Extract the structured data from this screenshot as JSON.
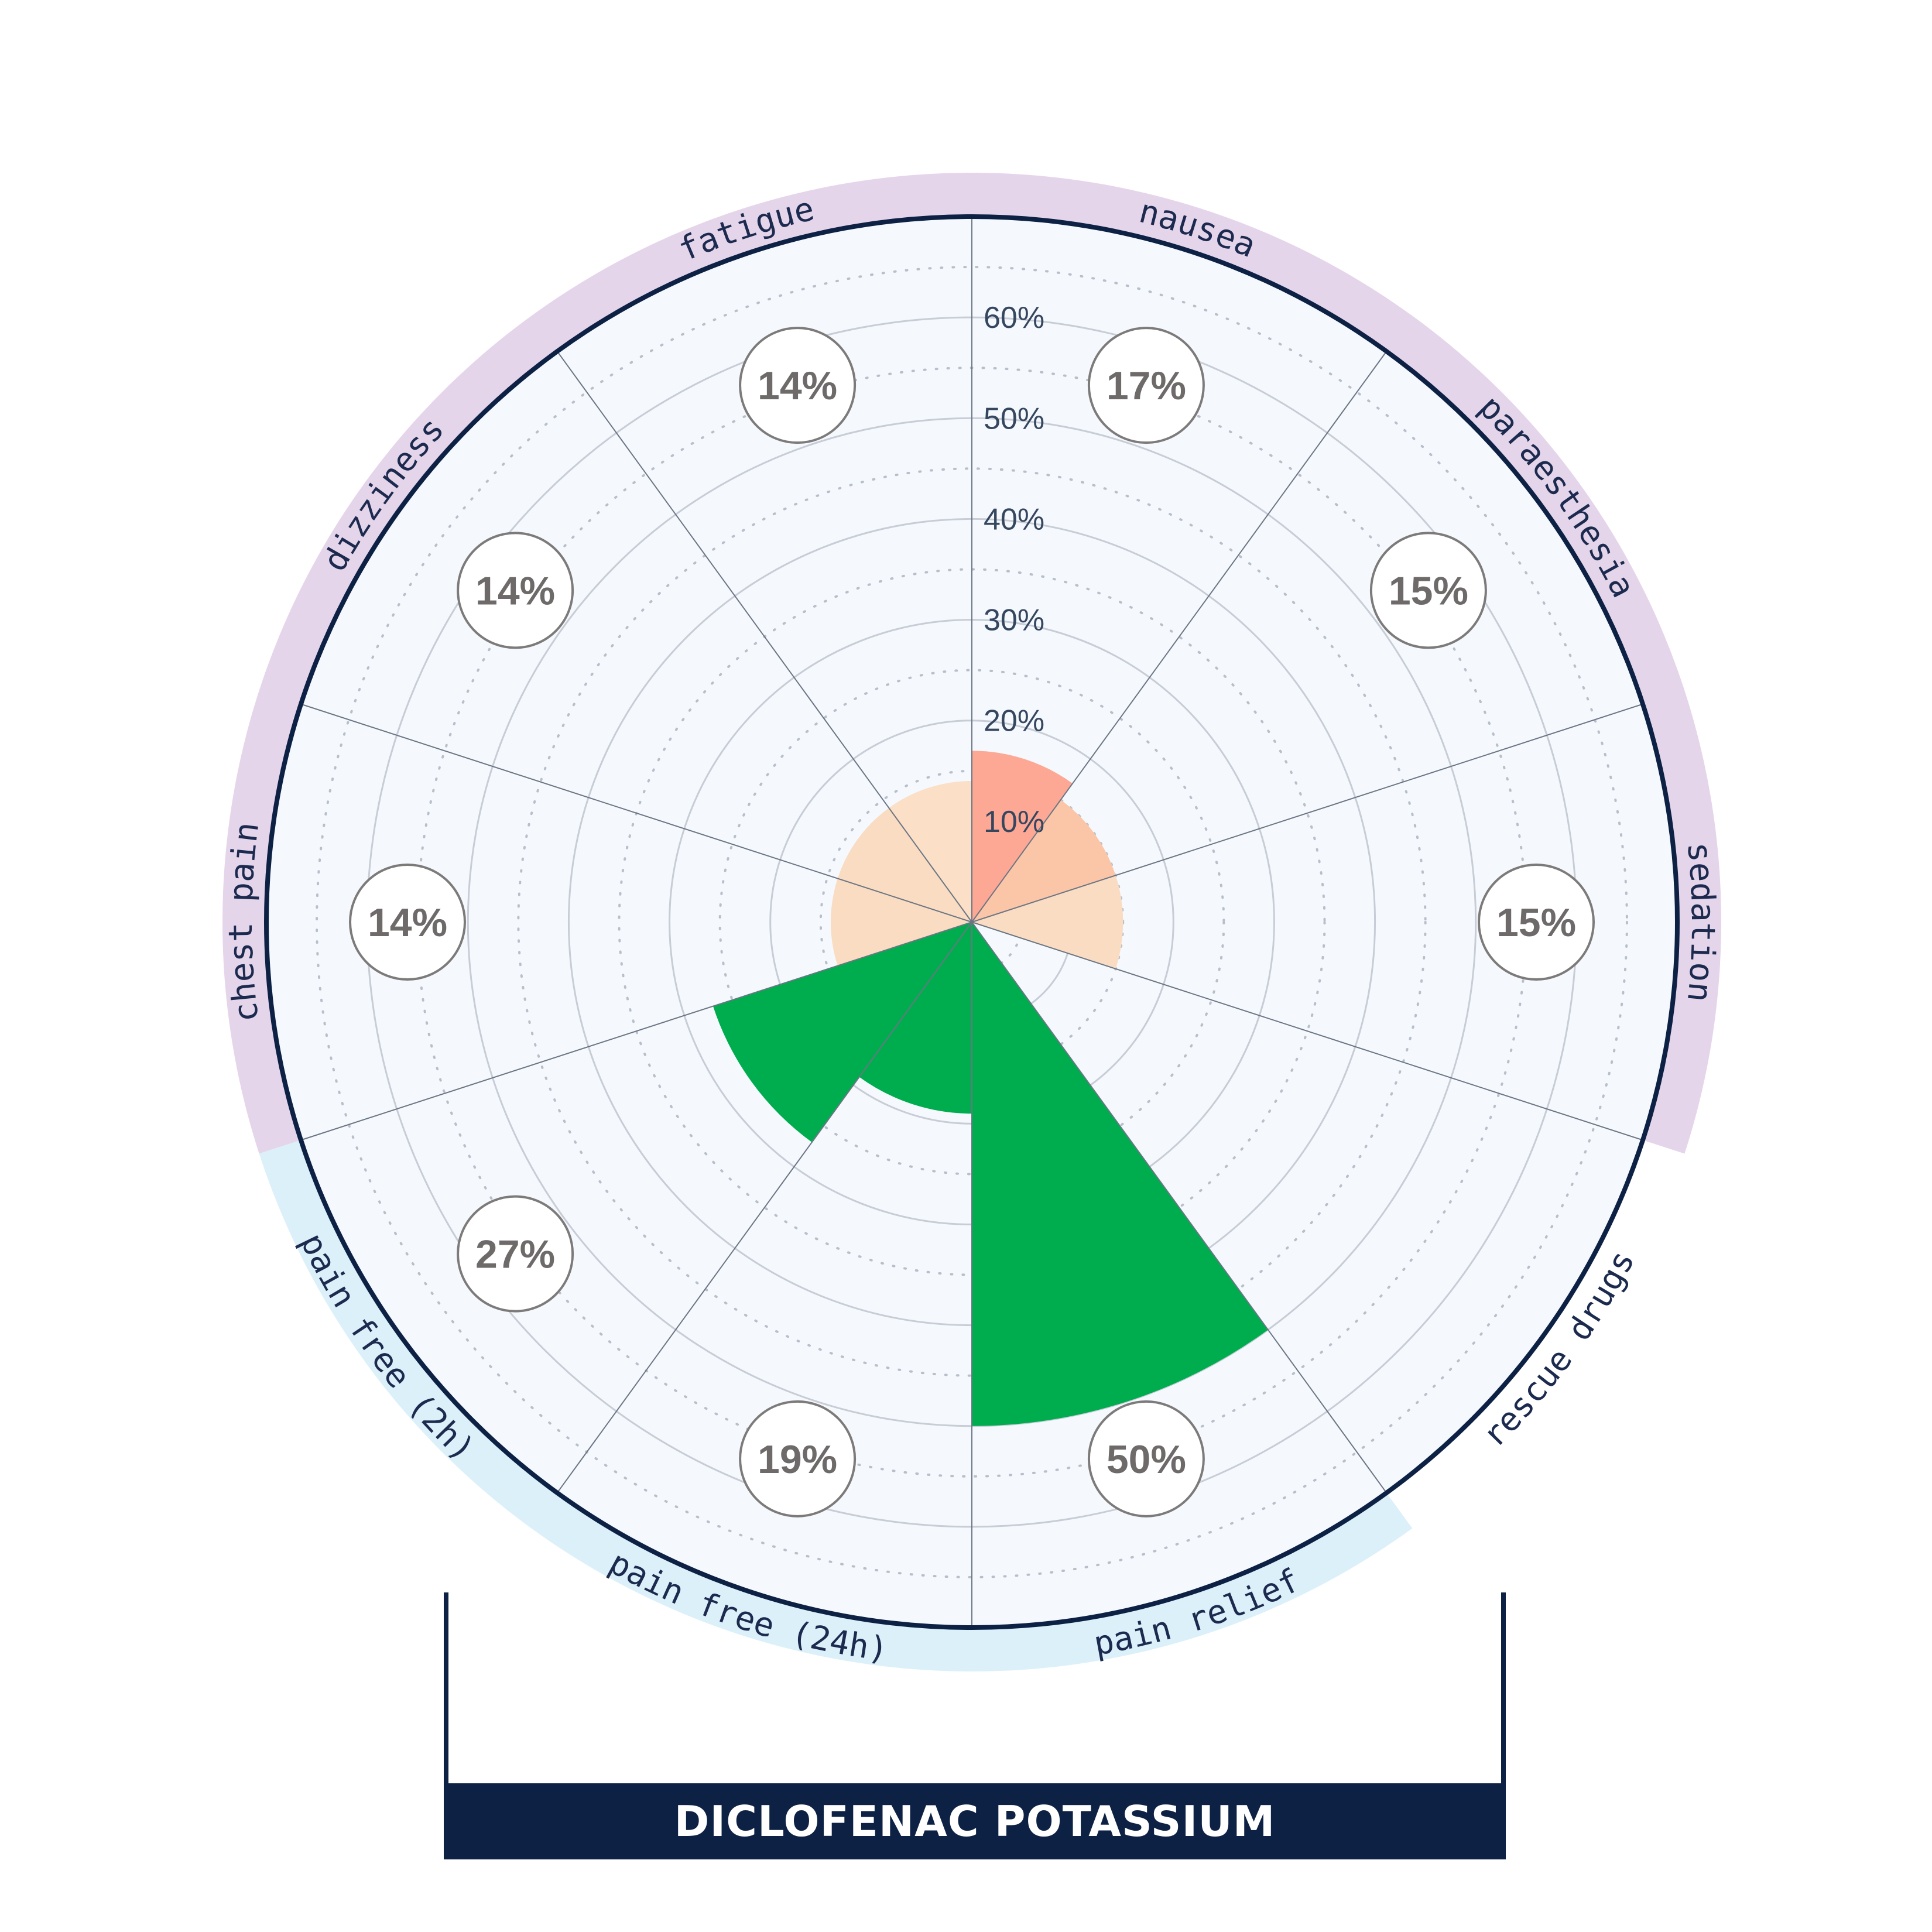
{
  "chart_data": {
    "type": "polar-area",
    "title": "DICLOFENAC POTASSIUM",
    "rlim": [
      0,
      70
    ],
    "ticks": [
      "10%",
      "20%",
      "30%",
      "40%",
      "50%",
      "60%"
    ],
    "tick_values": [
      10,
      20,
      30,
      40,
      50,
      60
    ],
    "categories": [
      {
        "label": "nausea",
        "value": 17,
        "display": "17%",
        "group": "adverse",
        "color": "#fca894"
      },
      {
        "label": "paraesthesia",
        "value": 15,
        "display": "15%",
        "group": "adverse",
        "color": "#fbc6a8"
      },
      {
        "label": "sedation",
        "value": 15,
        "display": "15%",
        "group": "adverse",
        "color": "#f9dcc1"
      },
      {
        "label": "rescue drugs",
        "value": 0,
        "display": "",
        "group": "none",
        "color": "#ffffff"
      },
      {
        "label": "pain relief",
        "value": 50,
        "display": "50%",
        "group": "benefit",
        "color": "#00ad4e"
      },
      {
        "label": "pain free (24h)",
        "value": 19,
        "display": "19%",
        "group": "benefit",
        "color": "#00ad4e"
      },
      {
        "label": "pain free (2h)",
        "value": 27,
        "display": "27%",
        "group": "benefit",
        "color": "#00ad4e"
      },
      {
        "label": "chest pain",
        "value": 14,
        "display": "14%",
        "group": "adverse",
        "color": "#f9dcc1"
      },
      {
        "label": "dizziness",
        "value": 14,
        "display": "14%",
        "group": "adverse",
        "color": "#f9dcc1"
      },
      {
        "label": "fatigue",
        "value": 14,
        "display": "14%",
        "group": "adverse",
        "color": "#fbdfc6"
      }
    ],
    "colors": {
      "adverse_band": "#e5d5ea",
      "benefit_band": "#dcf0f9",
      "plot_bg": "#f5f9fd",
      "outline": "#0d2145",
      "title_bar": "#0d2145"
    }
  }
}
